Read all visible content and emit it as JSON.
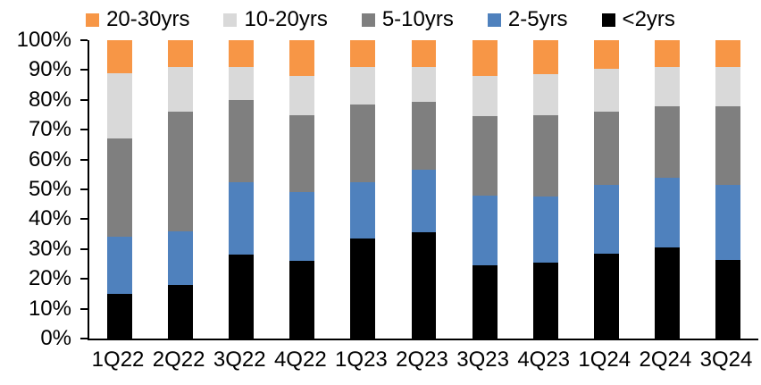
{
  "legend": {
    "items": [
      {
        "label": "20-30yrs",
        "color": "#F79646"
      },
      {
        "label": "10-20yrs",
        "color": "#D9D9D9"
      },
      {
        "label": "5-10yrs",
        "color": "#7F7F7F"
      },
      {
        "label": "2-5yrs",
        "color": "#4F81BD"
      },
      {
        "label": "<2yrs",
        "color": "#000000"
      }
    ]
  },
  "chart_data": {
    "type": "bar",
    "stacked": true,
    "percent_stacked": true,
    "title": "",
    "xlabel": "",
    "ylabel": "",
    "ylim": [
      0,
      100
    ],
    "y_tick_step": 10,
    "y_tick_labels": [
      "0%",
      "10%",
      "20%",
      "30%",
      "40%",
      "50%",
      "60%",
      "70%",
      "80%",
      "90%",
      "100%"
    ],
    "grid": false,
    "legend_position": "top",
    "categories": [
      "1Q22",
      "2Q22",
      "3Q22",
      "4Q22",
      "1Q23",
      "2Q23",
      "3Q23",
      "4Q23",
      "1Q24",
      "2Q24",
      "3Q24"
    ],
    "series": [
      {
        "name": "<2yrs",
        "color": "#000000",
        "values": [
          15,
          18,
          28,
          26,
          33.5,
          35.5,
          24.5,
          25.5,
          28.5,
          30.5,
          26.5
        ]
      },
      {
        "name": "2-5yrs",
        "color": "#4F81BD",
        "values": [
          19,
          18,
          24.5,
          23,
          19,
          21,
          23.5,
          22,
          23,
          23.5,
          25
        ]
      },
      {
        "name": "5-10yrs",
        "color": "#7F7F7F",
        "values": [
          33,
          40,
          27.5,
          26,
          26,
          23,
          26.5,
          27.5,
          24.5,
          24,
          26.5
        ]
      },
      {
        "name": "10-20yrs",
        "color": "#D9D9D9",
        "values": [
          22,
          15,
          11,
          13,
          12.5,
          11.5,
          13.5,
          13.5,
          14.5,
          13,
          13
        ]
      },
      {
        "name": "20-30yrs",
        "color": "#F79646",
        "values": [
          11,
          9,
          9,
          12,
          9,
          9,
          12,
          11.5,
          9.5,
          9,
          9
        ]
      }
    ]
  }
}
